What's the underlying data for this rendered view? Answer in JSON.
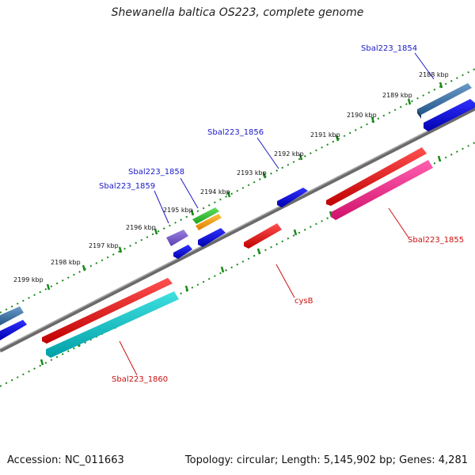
{
  "title": "Shewanella baltica OS223, complete genome",
  "accession_text": "Accession: NC_011663",
  "summary_text": "Topology: circular; Length: 5,145,902 bp; Genes: 4,281",
  "colors": {
    "backbone": "#808080",
    "tick": "#1a8a1a",
    "forward_label": "#1a1ac8",
    "reverse_label": "#cc1010"
  },
  "kbp_ticks": [
    "2188 kbp",
    "2189 kbp",
    "2190 kbp",
    "2191 kbp",
    "2192 kbp",
    "2193 kbp",
    "2194 kbp",
    "2195 kbp",
    "2196 kbp",
    "2197 kbp",
    "2198 kbp",
    "2199 kbp"
  ],
  "gene_labels": {
    "sbal223_1854": "Sbal223_1854",
    "sbal223_1856": "Sbal223_1856",
    "sbal223_1858": "Sbal223_1858",
    "sbal223_1859": "Sbal223_1859",
    "sbal223_1855": "Sbal223_1855",
    "cysb": "cysB",
    "sbal223_1860": "Sbal223_1860"
  }
}
